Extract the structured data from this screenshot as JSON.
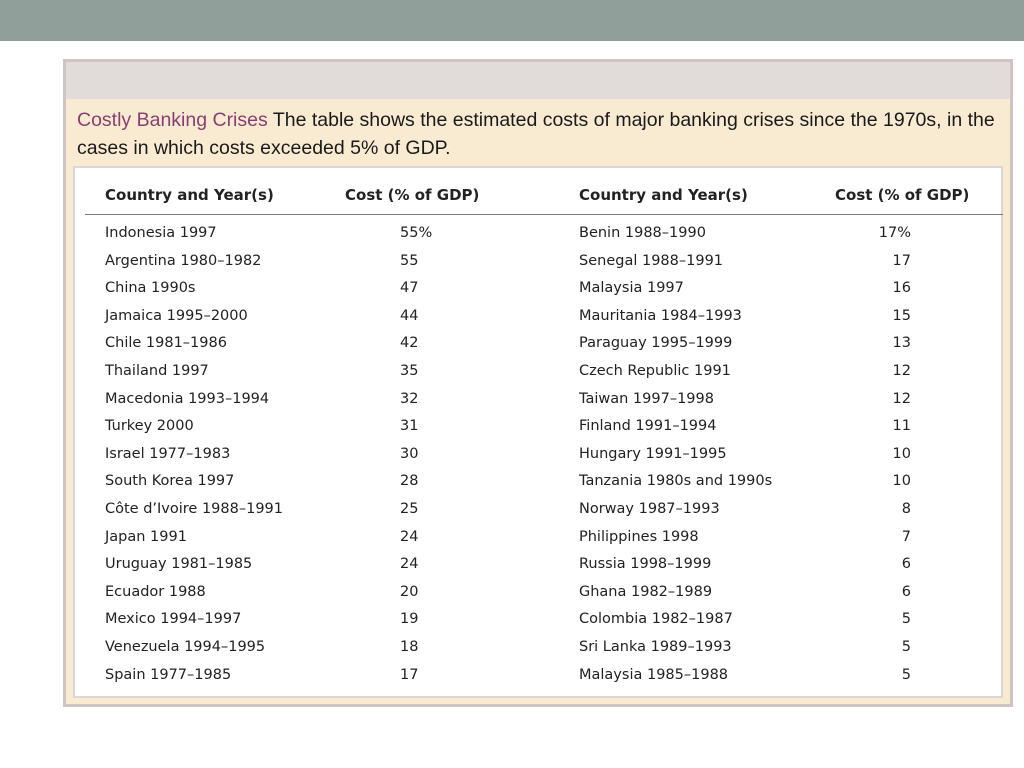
{
  "caption": {
    "title": "Costly Banking Crises",
    "text": "The table shows the estimated costs of major banking crises since the 1970s, in the cases in which costs exceeded 5% of GDP."
  },
  "table": {
    "headers": [
      "Country and Year(s)",
      "Cost (% of GDP)",
      "Country and Year(s)",
      "Cost (% of GDP)"
    ],
    "left_rows": [
      {
        "country": "Indonesia 1997",
        "cost": "55%"
      },
      {
        "country": "Argentina 1980–1982",
        "cost": "55"
      },
      {
        "country": "China 1990s",
        "cost": "47"
      },
      {
        "country": "Jamaica 1995–2000",
        "cost": "44"
      },
      {
        "country": "Chile 1981–1986",
        "cost": "42"
      },
      {
        "country": "Thailand 1997",
        "cost": "35"
      },
      {
        "country": "Macedonia 1993–1994",
        "cost": "32"
      },
      {
        "country": "Turkey 2000",
        "cost": "31"
      },
      {
        "country": "Israel 1977–1983",
        "cost": "30"
      },
      {
        "country": "South Korea 1997",
        "cost": "28"
      },
      {
        "country": "Côte d’Ivoire 1988–1991",
        "cost": "25"
      },
      {
        "country": "Japan 1991",
        "cost": "24"
      },
      {
        "country": "Uruguay 1981–1985",
        "cost": "24"
      },
      {
        "country": "Ecuador 1988",
        "cost": "20"
      },
      {
        "country": "Mexico 1994–1997",
        "cost": "19"
      },
      {
        "country": "Venezuela 1994–1995",
        "cost": "18"
      },
      {
        "country": "Spain 1977–1985",
        "cost": "17"
      }
    ],
    "right_rows": [
      {
        "country": "Benin 1988–1990",
        "cost": "17%"
      },
      {
        "country": "Senegal 1988–1991",
        "cost": "17"
      },
      {
        "country": "Malaysia 1997",
        "cost": "16"
      },
      {
        "country": "Mauritania 1984–1993",
        "cost": "15"
      },
      {
        "country": "Paraguay 1995–1999",
        "cost": "13"
      },
      {
        "country": "Czech Republic 1991",
        "cost": "12"
      },
      {
        "country": "Taiwan 1997–1998",
        "cost": "12"
      },
      {
        "country": "Finland 1991–1994",
        "cost": "11"
      },
      {
        "country": "Hungary 1991–1995",
        "cost": "10"
      },
      {
        "country": "Tanzania 1980s and 1990s",
        "cost": "10"
      },
      {
        "country": "Norway 1987–1993",
        "cost": "8"
      },
      {
        "country": "Philippines 1998",
        "cost": "7"
      },
      {
        "country": "Russia 1998–1999",
        "cost": "6"
      },
      {
        "country": "Ghana 1982–1989",
        "cost": "6"
      },
      {
        "country": "Colombia 1982–1987",
        "cost": "5"
      },
      {
        "country": "Sri Lanka 1989–1993",
        "cost": "5"
      },
      {
        "country": "Malaysia 1985–1988",
        "cost": "5"
      }
    ]
  }
}
